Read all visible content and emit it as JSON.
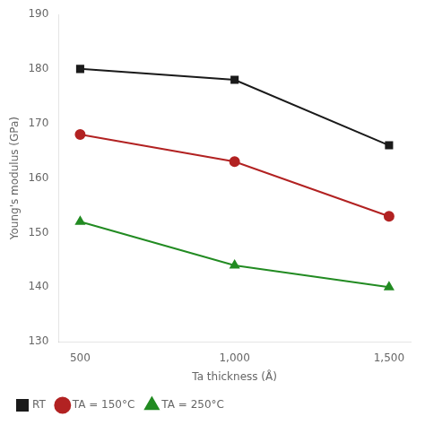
{
  "chart_data": {
    "type": "line",
    "xlabel": "Ta thickness (Å)",
    "ylabel": "Young's modulus (GPa)",
    "x": [
      500,
      1000,
      1500
    ],
    "series": [
      {
        "name": "RT",
        "color": "#1a1a1a",
        "marker": "square",
        "values": [
          180,
          178,
          166
        ]
      },
      {
        "name": "TA = 150°C",
        "color": "#b22222",
        "marker": "circle",
        "values": [
          168,
          163,
          153
        ]
      },
      {
        "name": "TA = 250°C",
        "color": "#228B22",
        "marker": "triangle",
        "values": [
          152,
          144,
          140
        ]
      }
    ],
    "xlim": [
      430,
      1570
    ],
    "xticks": [
      500,
      1000,
      1500
    ],
    "ylim": [
      130,
      190
    ],
    "yticks": [
      130,
      140,
      150,
      160,
      170,
      180,
      190
    ],
    "grid": false,
    "legend": "bottom"
  }
}
